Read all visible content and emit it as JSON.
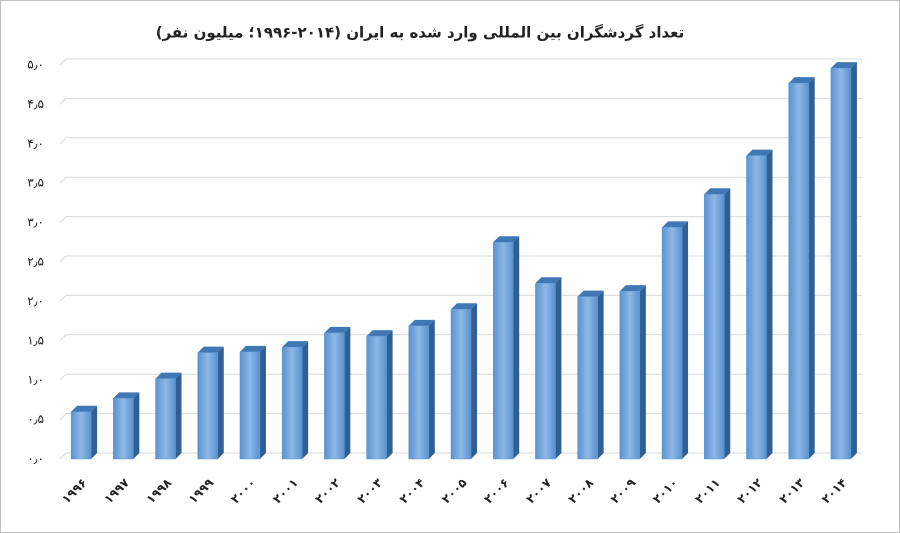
{
  "chart_data": {
    "type": "bar",
    "title": "تعداد گردشگران بین المللی وارد شده به ایران (۲۰۱۴-۱۹۹۶؛ میلیون نفر)",
    "categories": [
      "۱۹۹۶",
      "۱۹۹۷",
      "۱۹۹۸",
      "۱۹۹۹",
      "۲۰۰۰",
      "۲۰۰۱",
      "۲۰۰۲",
      "۲۰۰۳",
      "۲۰۰۴",
      "۲۰۰۵",
      "۲۰۰۶",
      "۲۰۰۷",
      "۲۰۰۸",
      "۲۰۰۹",
      "۲۰۱۰",
      "۲۰۱۱",
      "۲۰۱۲",
      "۲۰۱۳",
      "۲۰۱۴"
    ],
    "values": [
      0.6,
      0.77,
      1.02,
      1.35,
      1.36,
      1.42,
      1.6,
      1.56,
      1.69,
      1.9,
      2.75,
      2.23,
      2.06,
      2.13,
      2.94,
      3.36,
      3.85,
      4.77,
      4.96
    ],
    "color": "#5b9bd5",
    "ylim": [
      0,
      5
    ],
    "yticks": [
      {
        "value": 0,
        "label": "۰٫۰"
      },
      {
        "value": 0.5,
        "label": "۰٫۵"
      },
      {
        "value": 1,
        "label": "۱٫۰"
      },
      {
        "value": 1.5,
        "label": "۱٫۵"
      },
      {
        "value": 2,
        "label": "۲٫۰"
      },
      {
        "value": 2.5,
        "label": "۲٫۵"
      },
      {
        "value": 3,
        "label": "۳٫۰"
      },
      {
        "value": 3.5,
        "label": "۳٫۵"
      },
      {
        "value": 4,
        "label": "۴٫۰"
      },
      {
        "value": 4.5,
        "label": "۴٫۵"
      },
      {
        "value": 5,
        "label": "۵٫۰"
      }
    ],
    "grid": true
  }
}
